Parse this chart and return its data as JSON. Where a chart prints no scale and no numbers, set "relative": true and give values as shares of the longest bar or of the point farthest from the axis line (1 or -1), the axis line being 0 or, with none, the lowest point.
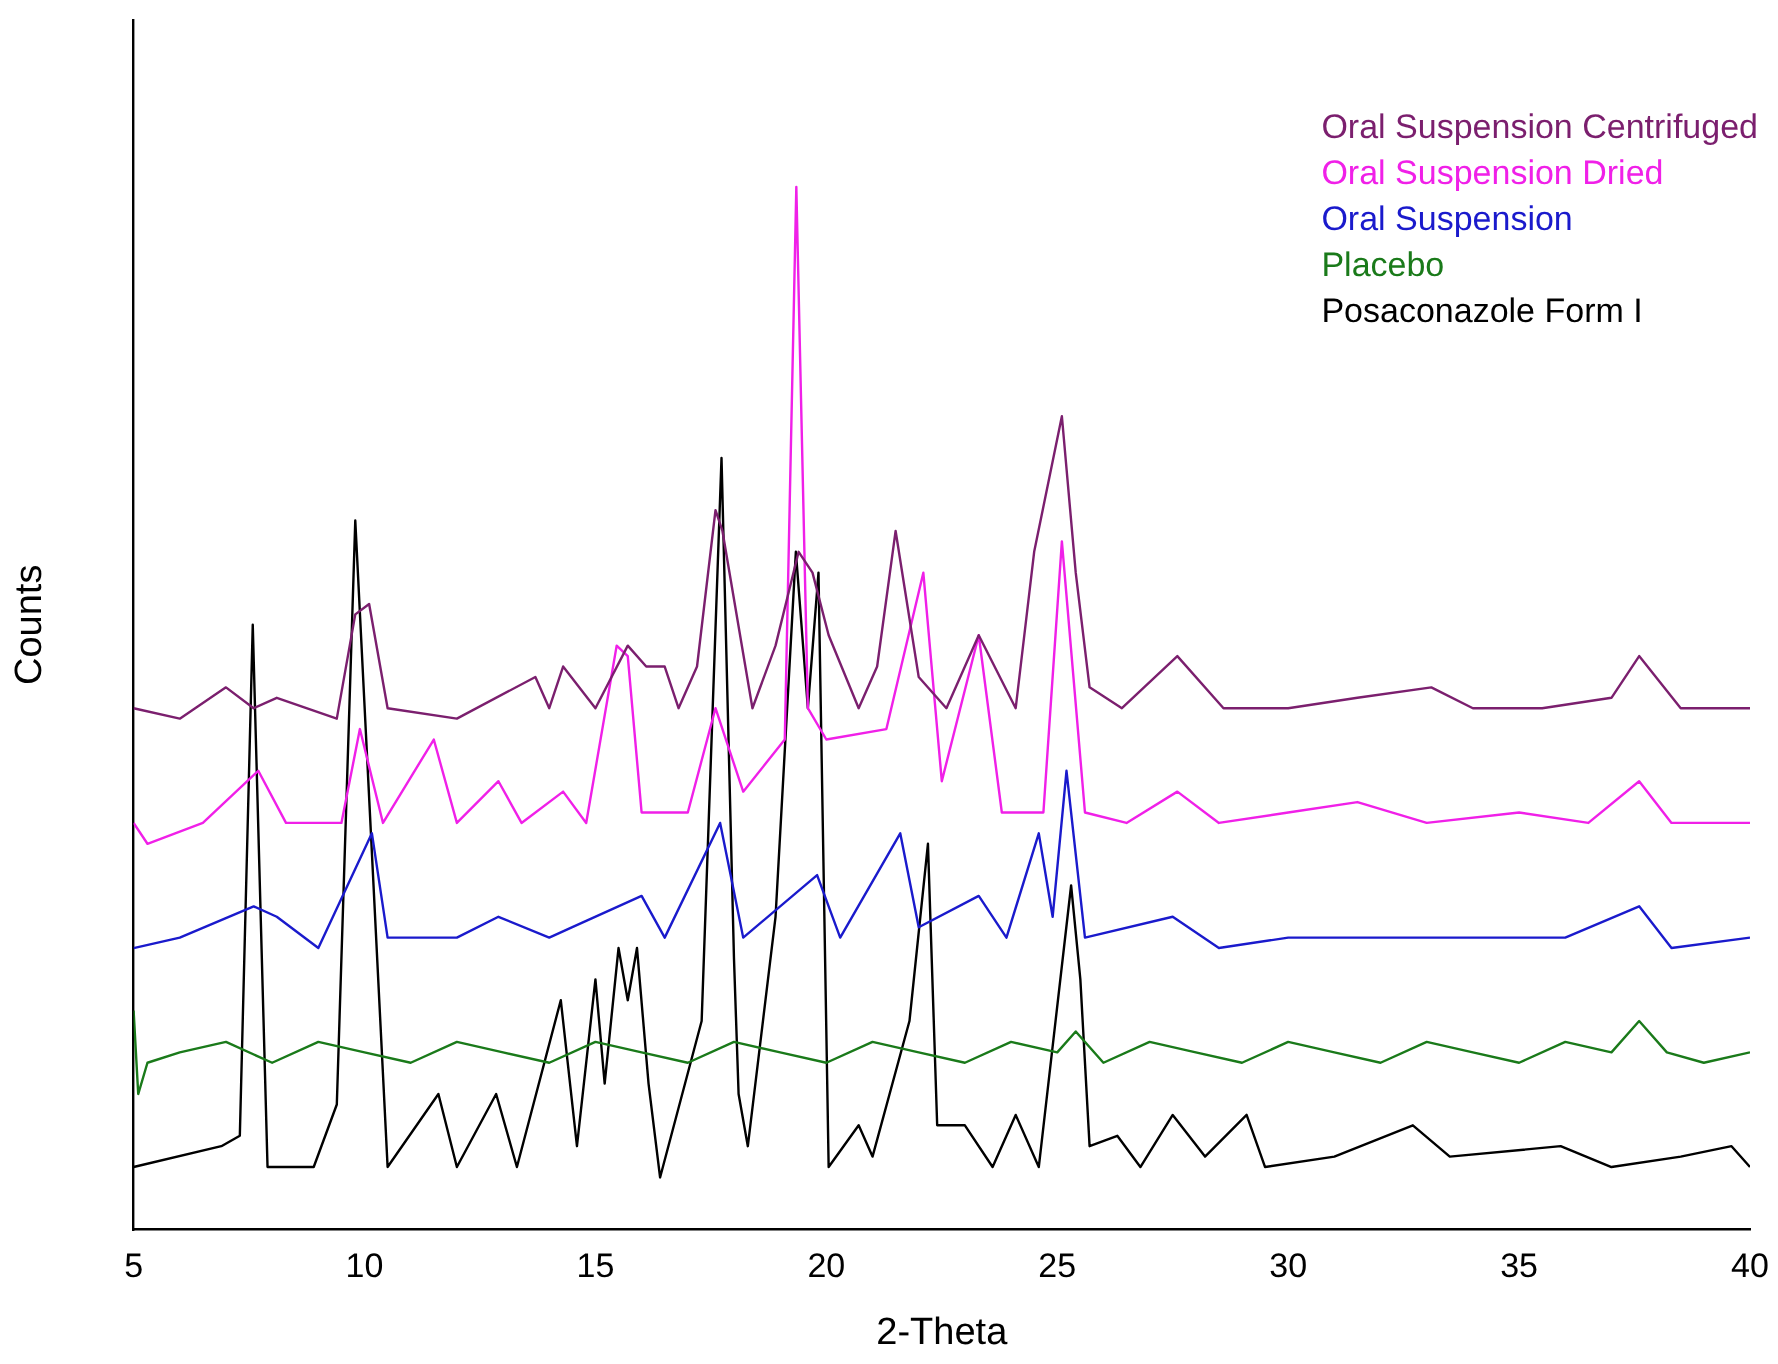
{
  "chart_data": {
    "type": "line",
    "relative": true,
    "xlabel": "2-Theta",
    "ylabel": "Counts",
    "xlim": [
      5,
      40
    ],
    "xticks": [
      5,
      10,
      15,
      20,
      25,
      30,
      35,
      40
    ],
    "grid": false,
    "legend": "top right",
    "marker": "none",
    "line_style": "solid",
    "series": [
      {
        "name": "Oral Suspension Centrifuged",
        "color": "#7b1f6e",
        "x": [
          5,
          6,
          7,
          7.6,
          8.1,
          9.4,
          9.8,
          10.1,
          10.5,
          12,
          13.7,
          14,
          14.3,
          15,
          15.7,
          16.1,
          16.5,
          16.8,
          17.2,
          17.6,
          17.75,
          18.4,
          18.9,
          19.4,
          19.7,
          20.05,
          20.7,
          21.1,
          21.5,
          22,
          22.6,
          23.3,
          24.1,
          24.5,
          25.1,
          25.4,
          25.7,
          26.4,
          27.6,
          28.6,
          30,
          31.5,
          33.1,
          34,
          35.5,
          37,
          37.6,
          38.5,
          40
        ],
        "values": [
          0.5,
          0.49,
          0.52,
          0.5,
          0.51,
          0.49,
          0.59,
          0.6,
          0.5,
          0.49,
          0.53,
          0.5,
          0.54,
          0.5,
          0.56,
          0.54,
          0.54,
          0.5,
          0.54,
          0.69,
          0.67,
          0.5,
          0.56,
          0.65,
          0.63,
          0.57,
          0.5,
          0.54,
          0.67,
          0.53,
          0.5,
          0.57,
          0.5,
          0.65,
          0.78,
          0.63,
          0.52,
          0.5,
          0.55,
          0.5,
          0.5,
          0.51,
          0.52,
          0.5,
          0.5,
          0.51,
          0.55,
          0.5,
          0.5
        ]
      },
      {
        "name": "Oral Suspension Dried",
        "color": "#f020e8",
        "x": [
          5,
          5.3,
          6.5,
          7.7,
          8.3,
          9.5,
          9.9,
          10.4,
          11.5,
          12,
          12.9,
          13.4,
          14.3,
          14.8,
          15.46,
          15.7,
          16,
          17,
          17.6,
          18.2,
          19.1,
          19.35,
          19.6,
          20,
          21.3,
          22.1,
          22.5,
          23.3,
          23.8,
          24.7,
          25.1,
          25.6,
          26.5,
          27.6,
          28.5,
          30,
          31.5,
          33,
          35,
          36.5,
          37.6,
          38.3,
          40
        ],
        "values": [
          0.39,
          0.37,
          0.39,
          0.44,
          0.39,
          0.39,
          0.48,
          0.39,
          0.47,
          0.39,
          0.43,
          0.39,
          0.42,
          0.39,
          0.56,
          0.55,
          0.4,
          0.4,
          0.5,
          0.42,
          0.47,
          1,
          0.5,
          0.47,
          0.48,
          0.63,
          0.43,
          0.57,
          0.4,
          0.4,
          0.66,
          0.4,
          0.39,
          0.42,
          0.39,
          0.4,
          0.41,
          0.39,
          0.4,
          0.39,
          0.43,
          0.39,
          0.39
        ]
      },
      {
        "name": "Oral Suspension",
        "color": "#1a1acc",
        "x": [
          5,
          6,
          7.6,
          8.1,
          9,
          10.16,
          10.5,
          12,
          12.9,
          14,
          14.5,
          16,
          16.5,
          17.7,
          18.2,
          19.8,
          20.3,
          21.6,
          22,
          23.3,
          23.9,
          24.6,
          24.9,
          25.2,
          25.6,
          27.5,
          28.5,
          30,
          32,
          34,
          36,
          37.6,
          38.3,
          40
        ],
        "values": [
          0.27,
          0.28,
          0.31,
          0.3,
          0.27,
          0.38,
          0.28,
          0.28,
          0.3,
          0.28,
          0.29,
          0.32,
          0.28,
          0.39,
          0.28,
          0.34,
          0.28,
          0.38,
          0.29,
          0.32,
          0.28,
          0.38,
          0.3,
          0.44,
          0.28,
          0.3,
          0.27,
          0.28,
          0.28,
          0.28,
          0.28,
          0.31,
          0.27,
          0.28
        ]
      },
      {
        "name": "Placebo",
        "color": "#1a7a1a",
        "x": [
          5,
          5.1,
          5.3,
          6,
          7,
          8,
          9,
          10,
          11,
          12,
          13,
          14,
          15,
          16,
          17,
          18,
          19,
          20,
          21,
          22,
          23,
          24,
          25,
          25.4,
          26,
          27,
          28,
          29,
          30,
          31,
          32,
          33,
          34,
          35,
          36,
          37,
          37.6,
          38.2,
          39,
          40
        ],
        "values": [
          0.21,
          0.13,
          0.16,
          0.17,
          0.18,
          0.16,
          0.18,
          0.17,
          0.16,
          0.18,
          0.17,
          0.16,
          0.18,
          0.17,
          0.16,
          0.18,
          0.17,
          0.16,
          0.18,
          0.17,
          0.16,
          0.18,
          0.17,
          0.19,
          0.16,
          0.18,
          0.17,
          0.16,
          0.18,
          0.17,
          0.16,
          0.18,
          0.17,
          0.16,
          0.18,
          0.17,
          0.2,
          0.17,
          0.16,
          0.17
        ]
      },
      {
        "name": "Posaconazole Form I",
        "color": "#000000",
        "x": [
          5,
          6.9,
          7.3,
          7.58,
          7.9,
          8.9,
          9.4,
          9.8,
          10.5,
          11.6,
          12,
          12.85,
          13.3,
          14.25,
          14.6,
          15,
          15.2,
          15.5,
          15.7,
          15.9,
          16.15,
          16.4,
          17.3,
          17.73,
          18,
          18.1,
          18.3,
          18.9,
          19.34,
          19.6,
          19.83,
          20.05,
          20.7,
          21,
          21.8,
          22.2,
          22.4,
          23,
          23.6,
          24.1,
          24.6,
          25.3,
          25.5,
          25.7,
          26.3,
          26.8,
          27.5,
          28.2,
          29.1,
          29.5,
          31,
          32.7,
          33.5,
          35.9,
          37,
          38.5,
          39.6,
          40
        ],
        "values": [
          0.06,
          0.08,
          0.09,
          0.58,
          0.06,
          0.06,
          0.12,
          0.68,
          0.06,
          0.13,
          0.06,
          0.13,
          0.06,
          0.22,
          0.08,
          0.24,
          0.14,
          0.27,
          0.22,
          0.27,
          0.14,
          0.05,
          0.2,
          0.74,
          0.26,
          0.13,
          0.08,
          0.3,
          0.65,
          0.5,
          0.63,
          0.06,
          0.1,
          0.07,
          0.2,
          0.37,
          0.1,
          0.1,
          0.06,
          0.11,
          0.06,
          0.33,
          0.24,
          0.08,
          0.09,
          0.06,
          0.11,
          0.07,
          0.11,
          0.06,
          0.07,
          0.1,
          0.07,
          0.08,
          0.06,
          0.07,
          0.08,
          0.06
        ]
      }
    ]
  }
}
